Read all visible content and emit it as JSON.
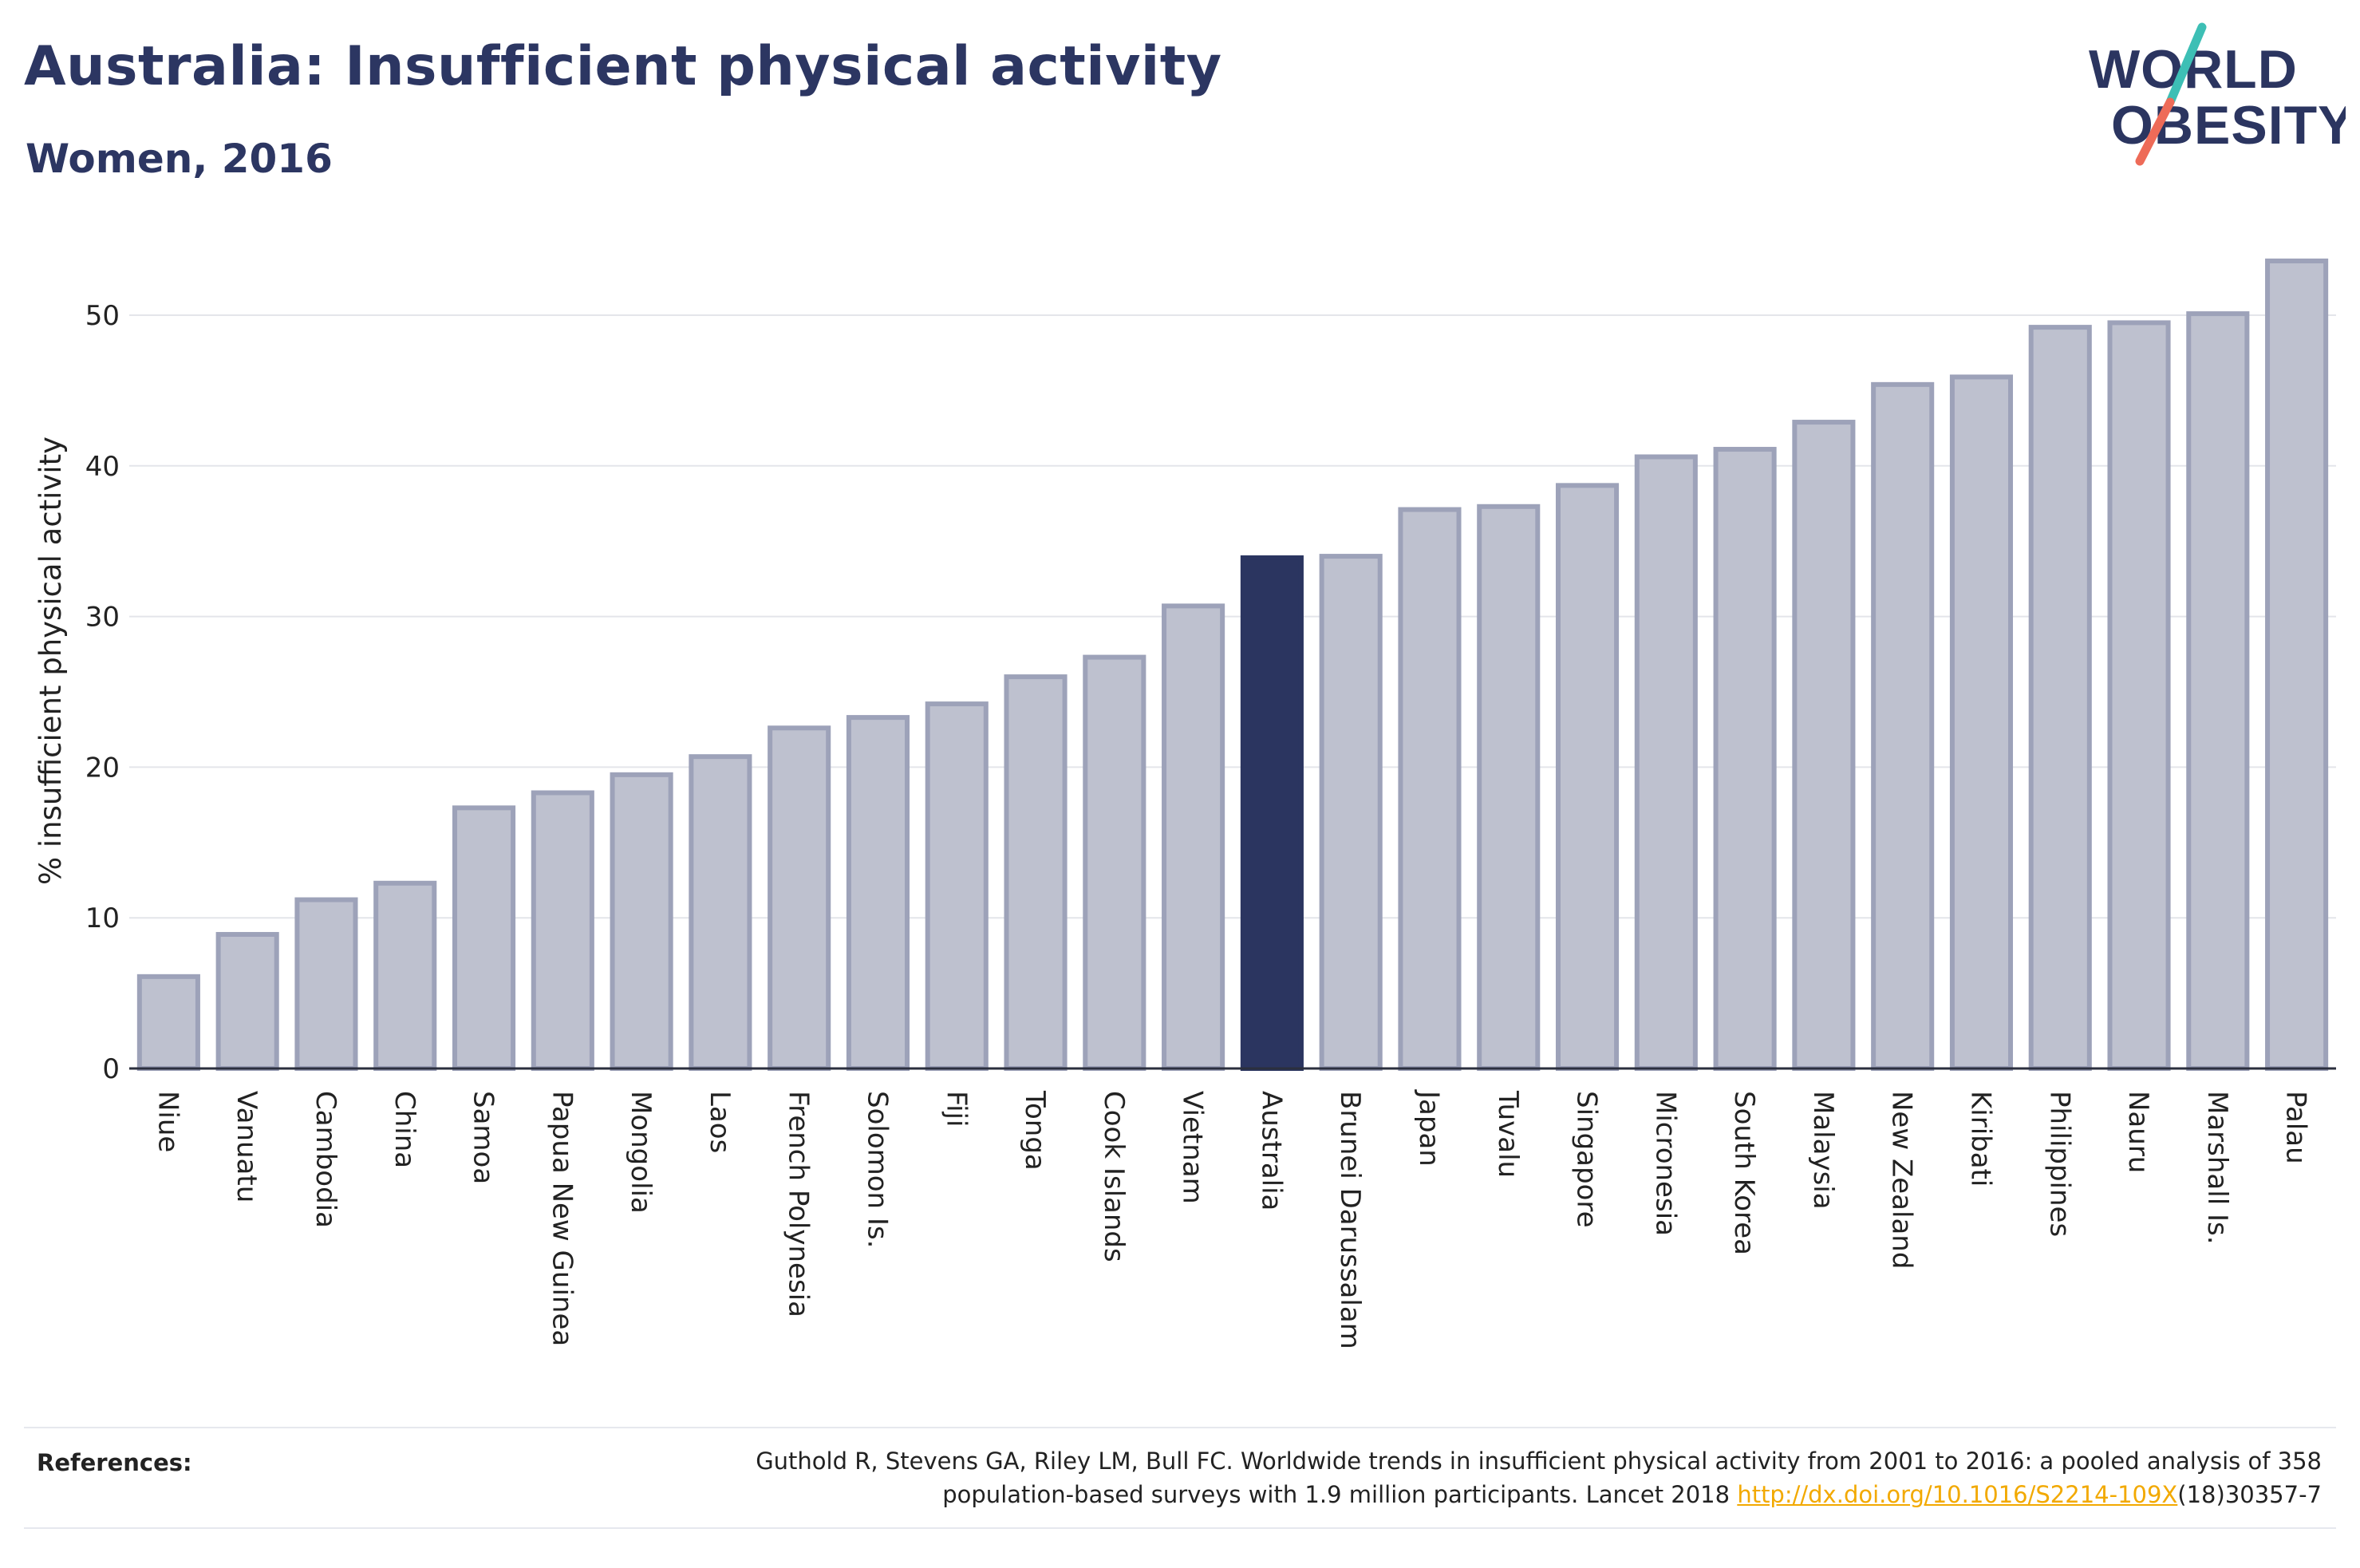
{
  "title": "Australia: Insufficient physical activity",
  "subtitle": "Women, 2016",
  "logo": {
    "line1": "WORLD",
    "line2": "OBESITY"
  },
  "references": {
    "label": "References:",
    "text_line1": "Guthold R, Stevens GA, Riley LM, Bull FC. Worldwide trends in insufficient physical activity from 2001 to 2016: a pooled analysis of 358",
    "text_line2_prefix": "population-based surveys with 1.9 million participants. Lancet 2018 ",
    "link": "http://dx.doi.org/10.1016/S2214-109X",
    "text_line2_suffix": "(18)30357-7"
  },
  "colors": {
    "highlight": "#2b3560",
    "bar_fill": "#bec1cf",
    "bar_stroke": "#9da2b9",
    "grid": "#e4e5ea",
    "axis": "#2b2f3e",
    "logo_teal": "#3dbfb5",
    "logo_coral": "#ee6b58"
  },
  "chart_data": {
    "type": "bar",
    "title": "Australia: Insufficient physical activity",
    "subtitle": "Women, 2016",
    "xlabel": "",
    "ylabel": "% insufficient physical activity",
    "ylim": [
      0,
      55
    ],
    "yticks": [
      0,
      10,
      20,
      30,
      40,
      50
    ],
    "grid": true,
    "highlight": "Australia",
    "categories": [
      "Niue",
      "Vanuatu",
      "Cambodia",
      "China",
      "Samoa",
      "Papua New Guinea",
      "Mongolia",
      "Laos",
      "French Polynesia",
      "Solomon Is.",
      "Fiji",
      "Tonga",
      "Cook Islands",
      "Vietnam",
      "Australia",
      "Brunei Darussalam",
      "Japan",
      "Tuvalu",
      "Singapore",
      "Micronesia",
      "South Korea",
      "Malaysia",
      "New Zealand",
      "Kiribati",
      "Philippines",
      "Nauru",
      "Marshall Is.",
      "Palau"
    ],
    "values": [
      6.1,
      8.9,
      11.2,
      12.3,
      17.3,
      18.3,
      19.5,
      20.7,
      22.6,
      23.3,
      24.2,
      26.0,
      27.3,
      30.7,
      33.9,
      34.0,
      37.1,
      37.3,
      38.7,
      40.6,
      41.1,
      42.9,
      45.4,
      45.9,
      49.2,
      49.5,
      50.1,
      53.6
    ]
  }
}
